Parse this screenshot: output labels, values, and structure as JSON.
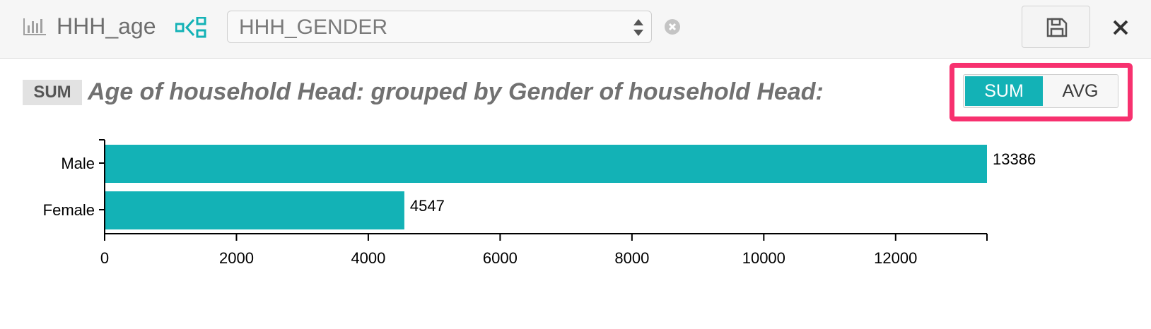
{
  "toolbar": {
    "field_icon": "bar-chart-icon",
    "field_name": "HHH_age",
    "group_icon": "group-by-icon",
    "groupby_select": {
      "value": "HHH_GENDER"
    },
    "clear_icon": "clear-icon",
    "save_icon": "save-icon",
    "close_icon": "close-icon"
  },
  "header": {
    "aggregation_badge": "SUM",
    "title": "Age of household Head: grouped by Gender of household Head:"
  },
  "aggregation_toggle": {
    "options": [
      "SUM",
      "AVG"
    ],
    "selected": "SUM"
  },
  "colors": {
    "accent": "#13b2b6",
    "highlight": "#f7316f"
  },
  "chart_data": {
    "type": "bar",
    "orientation": "horizontal",
    "categories": [
      "Male",
      "Female"
    ],
    "values": [
      13386,
      4547
    ],
    "value_labels": [
      "13386",
      "4547"
    ],
    "xlim": [
      0,
      13386
    ],
    "xticks": [
      0,
      2000,
      4000,
      6000,
      8000,
      10000,
      12000
    ],
    "grid": false
  }
}
